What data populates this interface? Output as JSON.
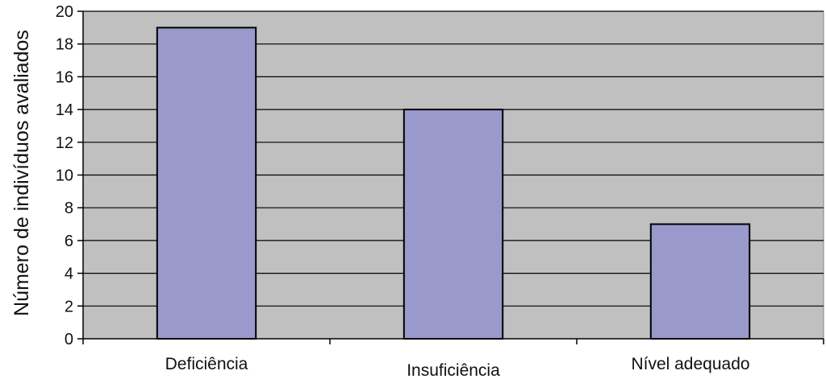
{
  "colors": {
    "plot_background": "#c0c0c0",
    "bar_fill": "#9999cc",
    "bar_stroke": "#000000",
    "gridline": "#000000"
  },
  "chart_data": {
    "type": "bar",
    "categories": [
      "Deficiência",
      "Insuficiência",
      "Nível adequado"
    ],
    "values": [
      19,
      14,
      7
    ],
    "title": "",
    "xlabel": "",
    "ylabel": "Número de indivíduos avaliados",
    "ylim": [
      0,
      20
    ],
    "yticks": [
      "0",
      "2",
      "4",
      "6",
      "8",
      "10",
      "12",
      "14",
      "16",
      "18",
      "20"
    ],
    "grid": true,
    "legend": "none"
  }
}
